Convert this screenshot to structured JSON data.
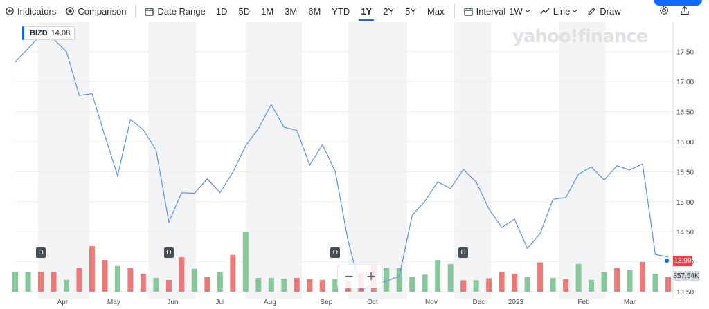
{
  "toolbar": {
    "indicators": "Indicators",
    "comparison": "Comparison",
    "date_range": "Date Range",
    "ranges": [
      "1D",
      "5D",
      "1M",
      "3M",
      "6M",
      "YTD",
      "1Y",
      "2Y",
      "5Y",
      "Max"
    ],
    "active_range": "1Y",
    "interval_label": "Interval",
    "interval_value": "1W",
    "chart_type": "Line",
    "draw": "Draw"
  },
  "watermark": "yahoo!finance",
  "badge": {
    "symbol": "BIZD",
    "value": "14.08"
  },
  "colors": {
    "line": "#5b8def",
    "up": "#88c79b",
    "down": "#ee7979",
    "accent": "#0f69ff"
  },
  "chart_data": {
    "type": "line",
    "series_name": "BIZD",
    "ylim": [
      13.5,
      17.9
    ],
    "y_ticks": [
      "17.50",
      "17.00",
      "16.50",
      "16.00",
      "15.50",
      "15.00",
      "14.50",
      "14.00",
      "13.50"
    ],
    "x_labels": [
      "Apr",
      "May",
      "Jun",
      "Jul",
      "Aug",
      "Sep",
      "Oct",
      "Nov",
      "Dec",
      "2023",
      "Feb",
      "Mar"
    ],
    "x_label_weeks": [
      3.7,
      7.7,
      12.3,
      16.0,
      19.9,
      24.3,
      27.9,
      32.5,
      36.2,
      39.1,
      44.4,
      48.0
    ],
    "values": [
      17.33,
      17.55,
      17.78,
      17.71,
      17.5,
      16.77,
      16.8,
      16.1,
      15.43,
      16.37,
      16.2,
      15.86,
      14.66,
      15.15,
      15.14,
      15.38,
      15.15,
      15.49,
      15.93,
      16.22,
      16.62,
      16.24,
      16.19,
      15.61,
      15.95,
      15.5,
      14.35,
      13.54,
      13.61,
      13.68,
      13.76,
      14.77,
      15.01,
      15.33,
      15.22,
      15.54,
      15.33,
      14.88,
      14.57,
      14.71,
      14.22,
      14.47,
      15.04,
      15.07,
      15.46,
      15.58,
      15.36,
      15.6,
      15.53,
      15.63,
      14.12,
      14.08
    ],
    "volume_up": [
      true,
      true,
      false,
      false,
      true,
      false,
      false,
      false,
      true,
      false,
      false,
      true,
      false,
      false,
      true,
      false,
      true,
      false,
      true,
      true,
      true,
      true,
      false,
      false,
      false,
      true,
      false,
      false,
      false,
      true,
      true,
      true,
      true,
      true,
      true,
      false,
      true,
      false,
      false,
      false,
      true,
      false,
      true,
      false,
      true,
      true,
      true,
      false,
      true,
      false,
      true,
      false
    ],
    "volume": [
      0.5,
      0.5,
      0.5,
      0.5,
      0.3,
      0.6,
      1.15,
      0.8,
      0.65,
      0.6,
      0.45,
      0.35,
      0.3,
      0.87,
      0.58,
      0.38,
      0.5,
      0.93,
      1.5,
      0.35,
      0.35,
      0.33,
      0.35,
      0.32,
      0.3,
      0.32,
      0.26,
      0.48,
      0.68,
      0.6,
      0.6,
      0.38,
      0.43,
      0.8,
      0.7,
      0.29,
      0.29,
      0.34,
      0.5,
      0.45,
      0.38,
      0.74,
      0.35,
      0.32,
      0.7,
      0.3,
      0.5,
      0.6,
      0.55,
      0.75,
      0.45,
      0.38
    ],
    "price_tag": "13.99",
    "volume_tag": "857.54K",
    "markers": [
      {
        "label": "D",
        "week": 2
      },
      {
        "label": "D",
        "week": 12
      },
      {
        "label": "D",
        "week": 25
      },
      {
        "label": "D",
        "week": 35
      }
    ]
  }
}
